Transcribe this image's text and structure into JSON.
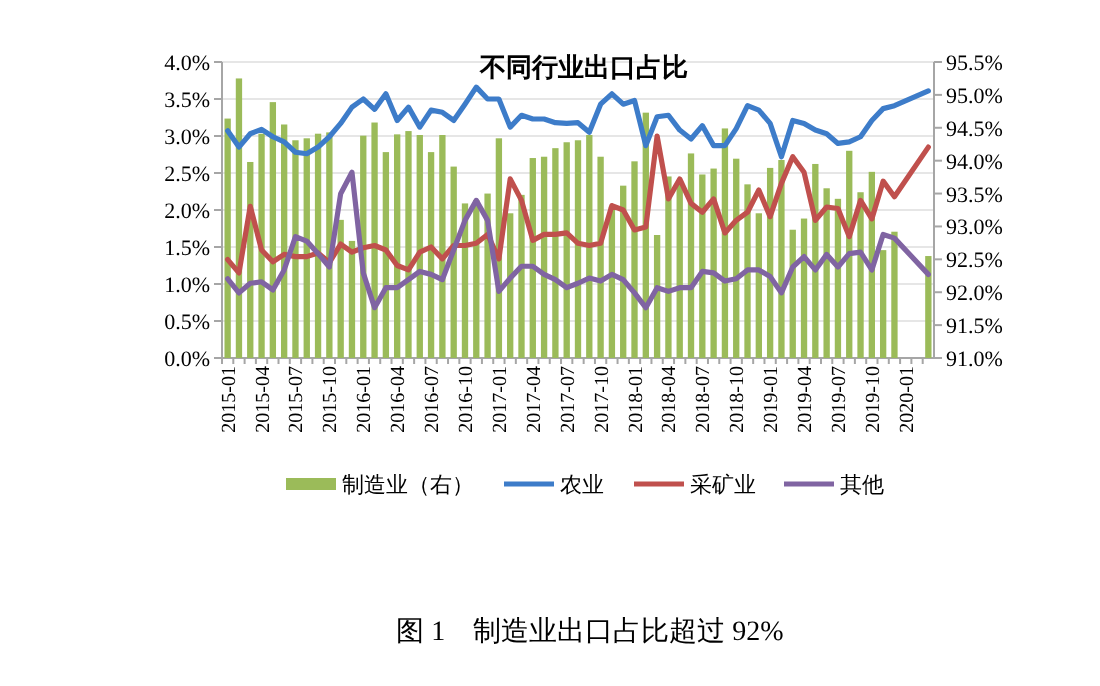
{
  "chart_data": {
    "type": "line",
    "title": "不同行业出口占比",
    "categories": [
      "2015-01",
      null,
      null,
      "2015-04",
      null,
      null,
      "2015-07",
      null,
      null,
      "2015-10",
      null,
      null,
      "2016-01",
      null,
      null,
      "2016-04",
      null,
      null,
      "2016-07",
      null,
      null,
      "2016-10",
      null,
      null,
      "2017-01",
      null,
      null,
      "2017-04",
      null,
      null,
      "2017-07",
      null,
      null,
      "2017-10",
      null,
      null,
      "2018-01",
      null,
      null,
      "2018-04",
      null,
      null,
      "2018-07",
      null,
      null,
      "2018-10",
      null,
      null,
      "2019-01",
      null,
      null,
      "2019-04",
      null,
      null,
      "2019-07",
      null,
      null,
      "2019-10",
      null,
      null,
      "2020-01",
      null,
      null
    ],
    "series": [
      {
        "name": "制造业（右）",
        "type": "bar",
        "axis": "y2",
        "color": "#9bbb59",
        "values": [
          94.64,
          95.25,
          93.98,
          94.41,
          94.89,
          94.55,
          94.31,
          94.34,
          94.41,
          94.43,
          93.1,
          92.78,
          94.38,
          94.58,
          94.13,
          94.4,
          94.45,
          94.39,
          94.13,
          94.39,
          93.91,
          93.35,
          93.4,
          93.5,
          94.34,
          93.2,
          93.48,
          94.04,
          94.06,
          94.19,
          94.28,
          94.31,
          94.39,
          94.06,
          93.3,
          93.62,
          93.99,
          94.73,
          92.87,
          93.76,
          93.7,
          94.11,
          93.79,
          93.88,
          94.49,
          94.03,
          93.64,
          93.2,
          93.89,
          94.01,
          92.95,
          93.12,
          93.95,
          93.58,
          93.42,
          94.15,
          93.52,
          93.83,
          92.64,
          92.92,
          null,
          null,
          92.55
        ]
      },
      {
        "name": "农业",
        "color": "#3d7cc9",
        "values": [
          3.07,
          2.85,
          3.03,
          3.09,
          2.99,
          2.92,
          2.78,
          2.76,
          2.85,
          2.99,
          3.17,
          3.39,
          3.5,
          3.36,
          3.57,
          3.21,
          3.39,
          3.12,
          3.35,
          3.32,
          3.21,
          3.43,
          3.66,
          3.5,
          3.5,
          3.12,
          3.28,
          3.23,
          3.23,
          3.18,
          3.17,
          3.18,
          3.05,
          3.43,
          3.57,
          3.43,
          3.48,
          2.87,
          3.26,
          3.28,
          3.08,
          2.96,
          3.14,
          2.87,
          2.87,
          3.1,
          3.41,
          3.35,
          3.17,
          2.72,
          3.21,
          3.17,
          3.08,
          3.03,
          2.9,
          2.92,
          2.99,
          3.21,
          3.37,
          3.41,
          null,
          null,
          3.61
        ]
      },
      {
        "name": "采矿业",
        "color": "#c0504d",
        "values": [
          1.33,
          1.15,
          2.05,
          1.46,
          1.3,
          1.4,
          1.37,
          1.37,
          1.42,
          1.29,
          1.54,
          1.43,
          1.49,
          1.52,
          1.46,
          1.25,
          1.19,
          1.43,
          1.5,
          1.34,
          1.52,
          1.52,
          1.55,
          1.67,
          1.34,
          2.42,
          2.13,
          1.59,
          1.67,
          1.67,
          1.69,
          1.55,
          1.52,
          1.55,
          2.06,
          2.0,
          1.73,
          1.77,
          3.0,
          2.15,
          2.42,
          2.09,
          1.97,
          2.15,
          1.69,
          1.86,
          1.97,
          2.27,
          1.91,
          2.36,
          2.72,
          2.51,
          1.86,
          2.04,
          2.02,
          1.64,
          2.13,
          1.88,
          2.39,
          2.18,
          null,
          null,
          2.85
        ]
      },
      {
        "name": "其他",
        "color": "#8064a2",
        "values": [
          1.07,
          0.88,
          1.01,
          1.03,
          0.92,
          1.19,
          1.64,
          1.58,
          1.41,
          1.23,
          2.22,
          2.51,
          1.15,
          0.68,
          0.95,
          0.95,
          1.06,
          1.17,
          1.13,
          1.06,
          1.46,
          1.86,
          2.13,
          1.86,
          0.9,
          1.08,
          1.24,
          1.24,
          1.13,
          1.06,
          0.95,
          1.01,
          1.08,
          1.04,
          1.13,
          1.06,
          0.88,
          0.68,
          0.95,
          0.9,
          0.95,
          0.95,
          1.17,
          1.15,
          1.04,
          1.07,
          1.19,
          1.19,
          1.1,
          0.88,
          1.23,
          1.37,
          1.19,
          1.4,
          1.23,
          1.41,
          1.43,
          1.19,
          1.67,
          1.62,
          null,
          null,
          1.13
        ]
      }
    ],
    "ylim": [
      0,
      4
    ],
    "yticks": [
      {
        "value": 0,
        "label": "0.0%"
      },
      {
        "value": 0.5,
        "label": "0.5%"
      },
      {
        "value": 1,
        "label": "1.0%"
      },
      {
        "value": 1.5,
        "label": "1.5%"
      },
      {
        "value": 2,
        "label": "2.0%"
      },
      {
        "value": 2.5,
        "label": "2.5%"
      },
      {
        "value": 3,
        "label": "3.0%"
      },
      {
        "value": 3.5,
        "label": "3.5%"
      },
      {
        "value": 4,
        "label": "4.0%"
      }
    ],
    "y2lim": [
      91,
      95.5
    ],
    "y2ticks": [
      {
        "value": 91,
        "label": "91.0%"
      },
      {
        "value": 91.5,
        "label": "91.5%"
      },
      {
        "value": 92,
        "label": "92.0%"
      },
      {
        "value": 92.5,
        "label": "92.5%"
      },
      {
        "value": 93,
        "label": "93.0%"
      },
      {
        "value": 93.5,
        "label": "93.5%"
      },
      {
        "value": 94,
        "label": "94.0%"
      },
      {
        "value": 94.5,
        "label": "94.5%"
      },
      {
        "value": 95,
        "label": "95.0%"
      },
      {
        "value": 95.5,
        "label": "95.5%"
      }
    ],
    "grid": "y",
    "legend": "bottom",
    "marker": "none",
    "line_style": "solid",
    "annotations": [
      "图 1　制造业出口占比超过 92%"
    ]
  }
}
